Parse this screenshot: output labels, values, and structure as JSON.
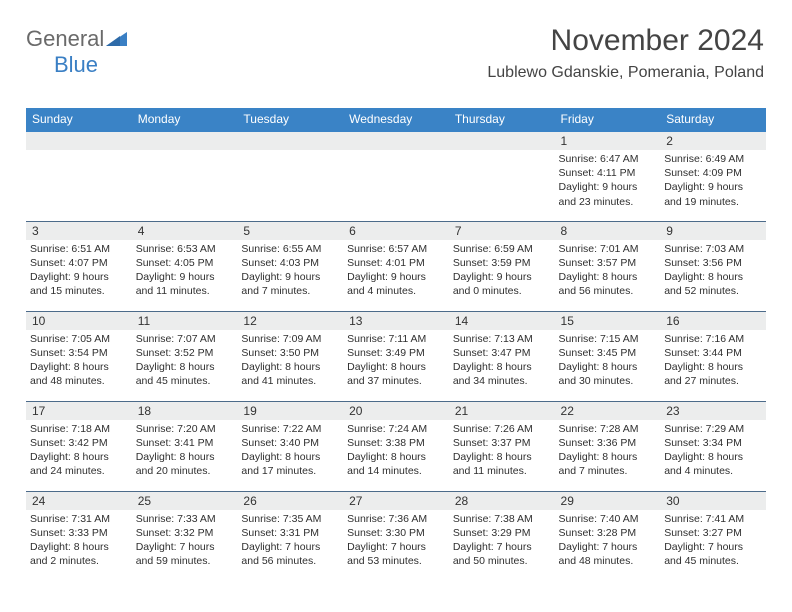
{
  "logo": {
    "word1": "General",
    "word2": "Blue"
  },
  "title": "November 2024",
  "subtitle": "Lublewo Gdanskie, Pomerania, Poland",
  "colors": {
    "header_bg": "#3a83c6",
    "header_text": "#ffffff",
    "daynum_bg": "#eceded",
    "border": "#4c6b8a",
    "logo_gray": "#6a6a6a",
    "logo_blue": "#3a7fc4"
  },
  "weekdays": [
    "Sunday",
    "Monday",
    "Tuesday",
    "Wednesday",
    "Thursday",
    "Friday",
    "Saturday"
  ],
  "layout": {
    "first_weekday_index": 5,
    "days_in_month": 30
  },
  "days": {
    "1": {
      "sunrise": "6:47 AM",
      "sunset": "4:11 PM",
      "daylight": "9 hours and 23 minutes."
    },
    "2": {
      "sunrise": "6:49 AM",
      "sunset": "4:09 PM",
      "daylight": "9 hours and 19 minutes."
    },
    "3": {
      "sunrise": "6:51 AM",
      "sunset": "4:07 PM",
      "daylight": "9 hours and 15 minutes."
    },
    "4": {
      "sunrise": "6:53 AM",
      "sunset": "4:05 PM",
      "daylight": "9 hours and 11 minutes."
    },
    "5": {
      "sunrise": "6:55 AM",
      "sunset": "4:03 PM",
      "daylight": "9 hours and 7 minutes."
    },
    "6": {
      "sunrise": "6:57 AM",
      "sunset": "4:01 PM",
      "daylight": "9 hours and 4 minutes."
    },
    "7": {
      "sunrise": "6:59 AM",
      "sunset": "3:59 PM",
      "daylight": "9 hours and 0 minutes."
    },
    "8": {
      "sunrise": "7:01 AM",
      "sunset": "3:57 PM",
      "daylight": "8 hours and 56 minutes."
    },
    "9": {
      "sunrise": "7:03 AM",
      "sunset": "3:56 PM",
      "daylight": "8 hours and 52 minutes."
    },
    "10": {
      "sunrise": "7:05 AM",
      "sunset": "3:54 PM",
      "daylight": "8 hours and 48 minutes."
    },
    "11": {
      "sunrise": "7:07 AM",
      "sunset": "3:52 PM",
      "daylight": "8 hours and 45 minutes."
    },
    "12": {
      "sunrise": "7:09 AM",
      "sunset": "3:50 PM",
      "daylight": "8 hours and 41 minutes."
    },
    "13": {
      "sunrise": "7:11 AM",
      "sunset": "3:49 PM",
      "daylight": "8 hours and 37 minutes."
    },
    "14": {
      "sunrise": "7:13 AM",
      "sunset": "3:47 PM",
      "daylight": "8 hours and 34 minutes."
    },
    "15": {
      "sunrise": "7:15 AM",
      "sunset": "3:45 PM",
      "daylight": "8 hours and 30 minutes."
    },
    "16": {
      "sunrise": "7:16 AM",
      "sunset": "3:44 PM",
      "daylight": "8 hours and 27 minutes."
    },
    "17": {
      "sunrise": "7:18 AM",
      "sunset": "3:42 PM",
      "daylight": "8 hours and 24 minutes."
    },
    "18": {
      "sunrise": "7:20 AM",
      "sunset": "3:41 PM",
      "daylight": "8 hours and 20 minutes."
    },
    "19": {
      "sunrise": "7:22 AM",
      "sunset": "3:40 PM",
      "daylight": "8 hours and 17 minutes."
    },
    "20": {
      "sunrise": "7:24 AM",
      "sunset": "3:38 PM",
      "daylight": "8 hours and 14 minutes."
    },
    "21": {
      "sunrise": "7:26 AM",
      "sunset": "3:37 PM",
      "daylight": "8 hours and 11 minutes."
    },
    "22": {
      "sunrise": "7:28 AM",
      "sunset": "3:36 PM",
      "daylight": "8 hours and 7 minutes."
    },
    "23": {
      "sunrise": "7:29 AM",
      "sunset": "3:34 PM",
      "daylight": "8 hours and 4 minutes."
    },
    "24": {
      "sunrise": "7:31 AM",
      "sunset": "3:33 PM",
      "daylight": "8 hours and 2 minutes."
    },
    "25": {
      "sunrise": "7:33 AM",
      "sunset": "3:32 PM",
      "daylight": "7 hours and 59 minutes."
    },
    "26": {
      "sunrise": "7:35 AM",
      "sunset": "3:31 PM",
      "daylight": "7 hours and 56 minutes."
    },
    "27": {
      "sunrise": "7:36 AM",
      "sunset": "3:30 PM",
      "daylight": "7 hours and 53 minutes."
    },
    "28": {
      "sunrise": "7:38 AM",
      "sunset": "3:29 PM",
      "daylight": "7 hours and 50 minutes."
    },
    "29": {
      "sunrise": "7:40 AM",
      "sunset": "3:28 PM",
      "daylight": "7 hours and 48 minutes."
    },
    "30": {
      "sunrise": "7:41 AM",
      "sunset": "3:27 PM",
      "daylight": "7 hours and 45 minutes."
    }
  },
  "labels": {
    "sunrise": "Sunrise: ",
    "sunset": "Sunset: ",
    "daylight": "Daylight: "
  }
}
